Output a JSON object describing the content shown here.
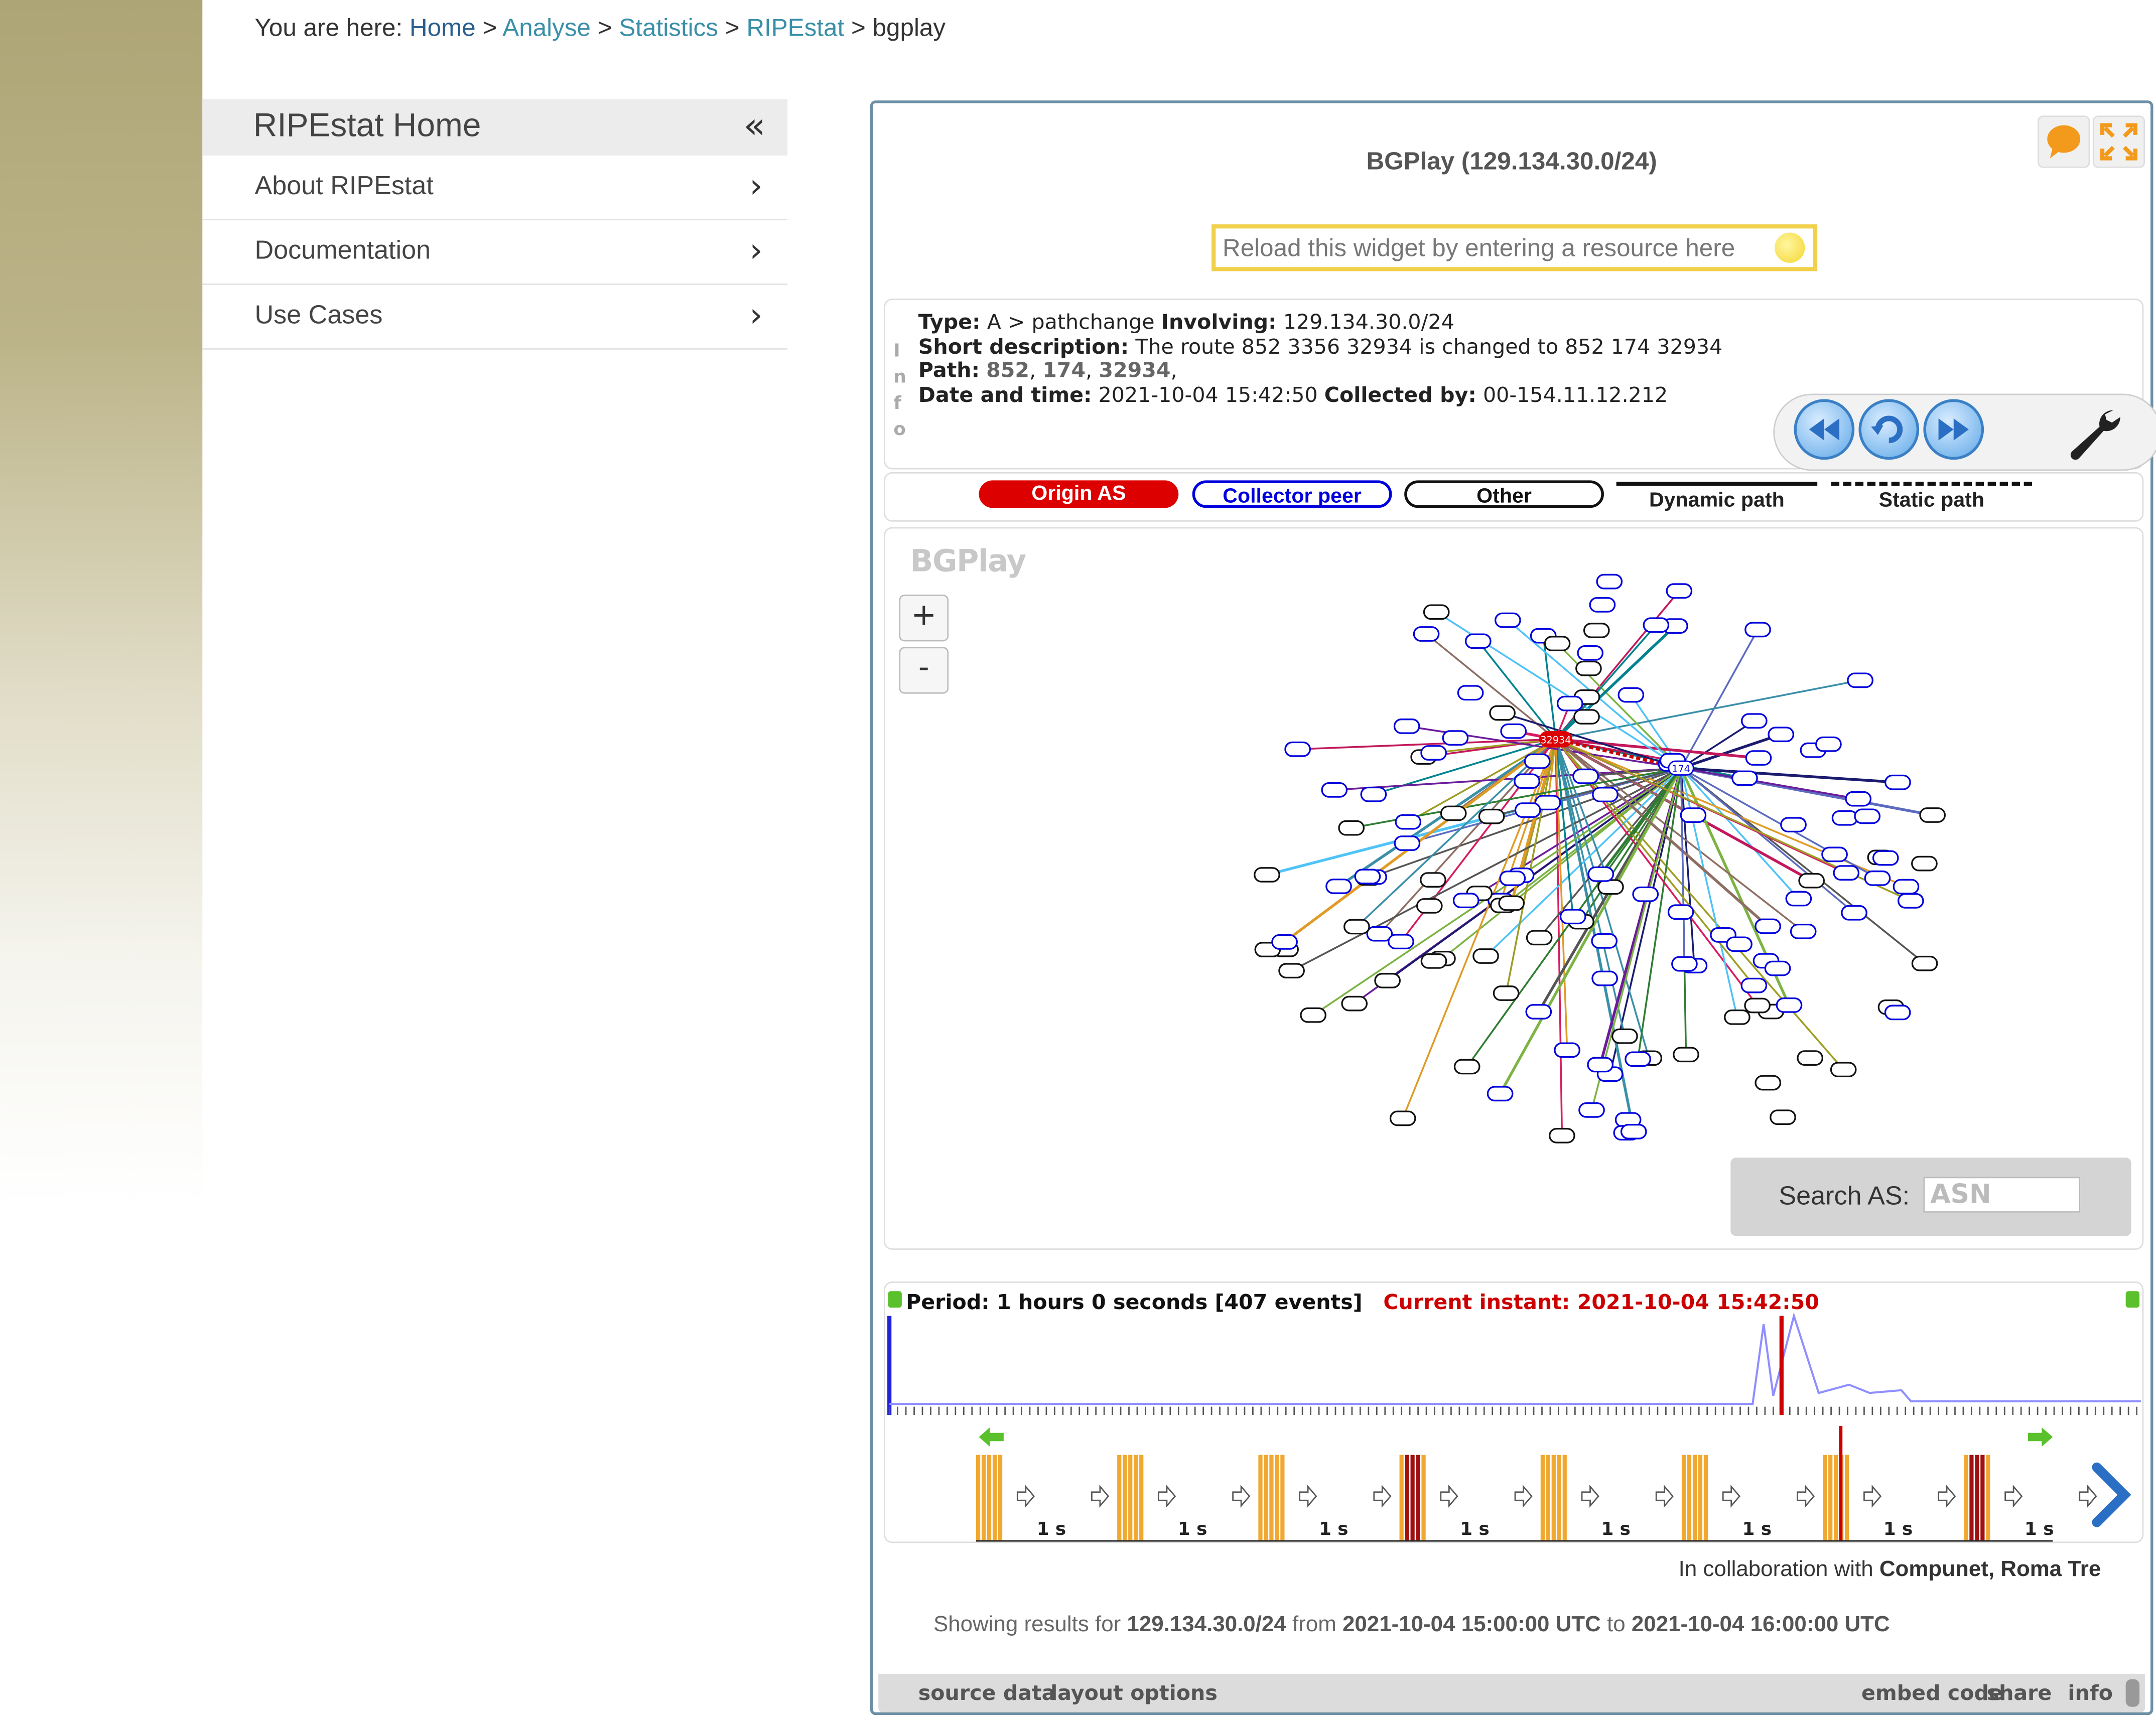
{
  "breadcrumb": {
    "prefix": "You are here:",
    "items": [
      "Home",
      "Analyse",
      "Statistics",
      "RIPEstat"
    ],
    "current": "bgplay",
    "sep": ">"
  },
  "sidebar": {
    "title": "RIPEstat Home",
    "collapse_glyph": "«",
    "items": [
      {
        "label": "About RIPEstat"
      },
      {
        "label": "Documentation"
      },
      {
        "label": "Use Cases"
      }
    ]
  },
  "widget": {
    "title": "BGPlay (129.134.30.0/24)",
    "reload_placeholder": "Reload this widget by entering a resource here",
    "info_vertical": "Info",
    "info": {
      "type_label": "Type:",
      "type_value": "A > pathchange",
      "involving_label": "Involving:",
      "involving_value": "129.134.30.0/24",
      "short_label": "Short description:",
      "short_value": "The route 852 3356 32934 is changed to 852 174 32934",
      "path_label": "Path:",
      "path_as": [
        "852",
        "174",
        "32934"
      ],
      "datetime_label": "Date and time:",
      "datetime_value": "2021-10-04 15:42:50",
      "collected_label": "Collected by:",
      "collected_value": "00-154.11.12.212"
    },
    "legend": {
      "origin": "Origin AS",
      "collector": "Collector peer",
      "other": "Other",
      "dynamic": "Dynamic path",
      "static": "Static path"
    },
    "graph": {
      "watermark": "BGPlay",
      "zoom_in": "+",
      "zoom_out": "-",
      "search_label": "Search AS:",
      "search_placeholder": "ASN",
      "origin_label": "32934",
      "hub_label": "174"
    },
    "timeline": {
      "period": "Period: 1 hours 0 seconds [407 events]",
      "current": "Current instant: 2021-10-04 15:42:50",
      "step_label": "1 s"
    },
    "collab_prefix": "In collaboration with",
    "collab_names": "Compunet, Roma Tre",
    "showing": {
      "prefix": "Showing results for",
      "resource": "129.134.30.0/24",
      "from_word": "from",
      "from": "2021-10-04 15:00:00 UTC",
      "to_word": "to",
      "to": "2021-10-04 16:00:00 UTC"
    },
    "bottom_left": [
      "source data",
      "layout",
      "options"
    ],
    "bottom_right": [
      "embed code",
      "share",
      "info"
    ]
  },
  "colors": {
    "origin": "#dd0000",
    "collector": "#0000dd",
    "link": "#3a8fa8",
    "timeline_line": "#3a3aff",
    "current_marker": "#cc0000",
    "event_bar": "#f0a830"
  }
}
